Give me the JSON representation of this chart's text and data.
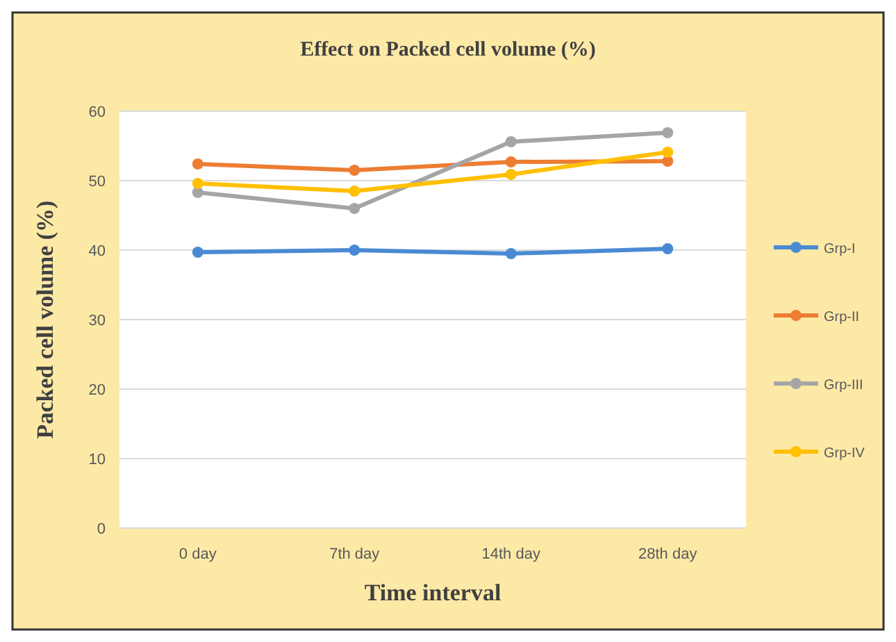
{
  "chart_data": {
    "type": "line",
    "title": "Effect on Packed cell volume (%)",
    "xlabel": "Time interval",
    "ylabel": "Packed cell volume (%)",
    "categories": [
      "0 day",
      "7th day",
      "14th day",
      "28th day"
    ],
    "series": [
      {
        "name": "Grp-I",
        "color": "#4a8ad4",
        "values": [
          39.7,
          40.0,
          39.5,
          40.2
        ]
      },
      {
        "name": "Grp-II",
        "color": "#ed7d31",
        "values": [
          52.4,
          51.5,
          52.7,
          52.8
        ]
      },
      {
        "name": "Grp-III",
        "color": "#a5a5a5",
        "values": [
          48.3,
          46.0,
          55.6,
          56.9
        ]
      },
      {
        "name": "Grp-IV",
        "color": "#ffc000",
        "values": [
          49.6,
          48.5,
          50.9,
          54.1
        ]
      }
    ],
    "ylim": [
      0,
      60
    ],
    "yticks": [
      0,
      10,
      20,
      30,
      40,
      50,
      60
    ],
    "grid": "y",
    "legend": "right",
    "marker": "circle",
    "line_style": "solid"
  }
}
